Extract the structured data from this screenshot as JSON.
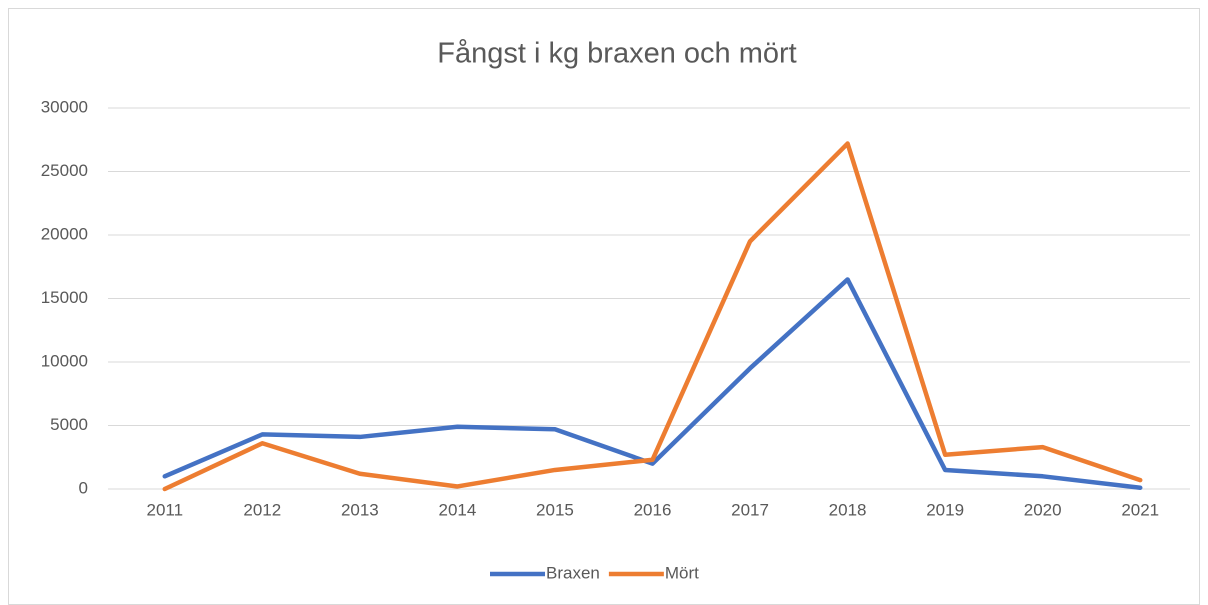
{
  "chart_data": {
    "type": "line",
    "title": "Fångst i kg braxen och mört",
    "categories": [
      "2011",
      "2012",
      "2013",
      "2014",
      "2015",
      "2016",
      "2017",
      "2018",
      "2019",
      "2020",
      "2021"
    ],
    "series": [
      {
        "name": "Braxen",
        "color": "#4472c4",
        "values": [
          1000,
          4300,
          4100,
          4900,
          4700,
          2000,
          9500,
          16500,
          1500,
          1000,
          100
        ]
      },
      {
        "name": "Mört",
        "color": "#ed7d31",
        "values": [
          0,
          3600,
          1200,
          200,
          1500,
          2300,
          19500,
          27200,
          2700,
          3300,
          700
        ]
      }
    ],
    "ylim": [
      0,
      30000
    ],
    "yticks": [
      0,
      5000,
      10000,
      15000,
      20000,
      25000,
      30000
    ],
    "grid": true,
    "legend": "bottom"
  }
}
